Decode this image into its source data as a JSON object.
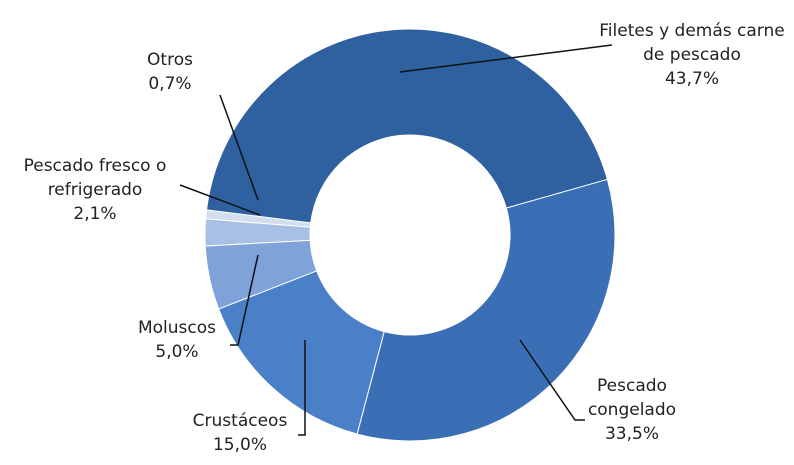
{
  "chart_data": {
    "type": "donut",
    "categories": [
      "Filetes y demás carne de pescado",
      "Pescado congelado",
      "Crustáceos",
      "Moluscos",
      "Pescado fresco o refrigerado",
      "Otros"
    ],
    "values": [
      43.7,
      33.5,
      15.0,
      5.0,
      2.1,
      0.7
    ],
    "value_labels": [
      "43,7%",
      "33,5%",
      "15,0%",
      "5,0%",
      "2,1%",
      "0,7%"
    ],
    "colors": [
      "#2f609f",
      "#3a6fb6",
      "#4a80c8",
      "#7fa2d9",
      "#a9c0e6",
      "#d3def0"
    ]
  }
}
